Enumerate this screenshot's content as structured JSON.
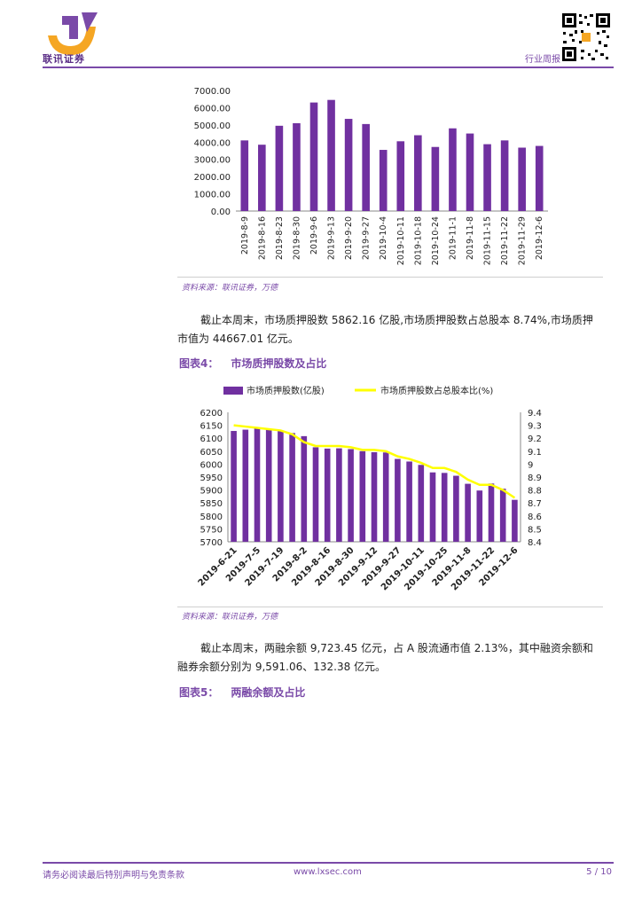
{
  "header": {
    "logo_text": "联讯证券",
    "report_type": "行业周报"
  },
  "chart1": {
    "source": "资料来源：联讯证券，万德",
    "chart_data": {
      "type": "bar",
      "categories": [
        "2019-8-9",
        "2019-8-16",
        "2019-8-23",
        "2019-8-30",
        "2019-9-6",
        "2019-9-13",
        "2019-9-20",
        "2019-9-27",
        "2019-10-4",
        "2019-10-11",
        "2019-10-18",
        "2019-10-24",
        "2019-11-1",
        "2019-11-8",
        "2019-11-15",
        "2019-11-22",
        "2019-11-29",
        "2019-12-6"
      ],
      "values": [
        4100,
        3850,
        4950,
        5100,
        6300,
        6450,
        5350,
        5050,
        3550,
        4050,
        4400,
        3720,
        4800,
        4500,
        3880,
        4100,
        3680,
        3780
      ],
      "y_ticks": [
        "7000.00",
        "6000.00",
        "5000.00",
        "4000.00",
        "3000.00",
        "2000.00",
        "1000.00",
        "0.00"
      ],
      "ylim": [
        0,
        7000
      ],
      "color": "#7030a0"
    }
  },
  "para1": "截止本周末，市场质押股数 5862.16 亿股,市场质押股数占总股本 8.74%,市场质押市值为 44667.01 亿元。",
  "fig4": {
    "label": "图表4：",
    "title": "市场质押股数及占比"
  },
  "chart2": {
    "source": "资料来源：联讯证券，万德",
    "chart_data": {
      "type": "bar+line",
      "legend": [
        "市场质押股数(亿股)",
        "市场质押股数占总股本比(%)"
      ],
      "x_tick_labels": [
        "2019-6-21",
        "2019-7-5",
        "2019-7-19",
        "2019-8-2",
        "2019-8-16",
        "2019-8-30",
        "2019-9-12",
        "2019-9-27",
        "2019-10-11",
        "2019-10-25",
        "2019-11-8",
        "2019-11-22",
        "2019-12-6"
      ],
      "bar_values": [
        6128,
        6133,
        6139,
        6133,
        6130,
        6120,
        6108,
        6065,
        6060,
        6061,
        6058,
        6050,
        6046,
        6045,
        6020,
        6010,
        5997,
        5968,
        5966,
        5955,
        5924,
        5898,
        5925,
        5905,
        5862
      ],
      "line_values": [
        9.3,
        9.29,
        9.28,
        9.27,
        9.26,
        9.23,
        9.17,
        9.14,
        9.14,
        9.14,
        9.13,
        9.11,
        9.11,
        9.1,
        9.06,
        9.04,
        9.01,
        8.97,
        8.97,
        8.94,
        8.88,
        8.84,
        8.84,
        8.8,
        8.74
      ],
      "left_ticks": [
        "6200",
        "6150",
        "6100",
        "6050",
        "6000",
        "5950",
        "5900",
        "5850",
        "5800",
        "5750",
        "5700"
      ],
      "right_ticks": [
        "9.4",
        "9.3",
        "9.2",
        "9.1",
        "9",
        "8.9",
        "8.8",
        "8.7",
        "8.6",
        "8.5",
        "8.4"
      ],
      "left_lim": [
        5700,
        6200
      ],
      "right_lim": [
        8.4,
        9.4
      ],
      "bar_color": "#7030a0",
      "line_color": "#ffff00"
    }
  },
  "para2": "截止本周末，两融余额 9,723.45 亿元，占 A 股流通市值 2.13%，其中融资余额和融券余额分别为 9,591.06、132.38 亿元。",
  "fig5": {
    "label": "图表5：",
    "title": "两融余额及占比"
  },
  "footer": {
    "disclaimer": "请务必阅读最后特别声明与免责条款",
    "website": "www.lxsec.com",
    "page": "5 / 10"
  }
}
